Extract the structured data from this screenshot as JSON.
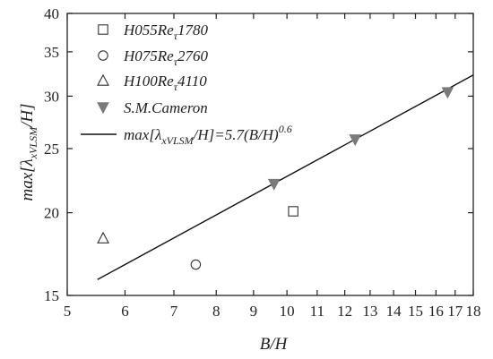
{
  "chart_data": {
    "type": "scatter",
    "x_scale": "log",
    "y_scale": "log",
    "xlim": [
      5,
      18
    ],
    "ylim": [
      15,
      40
    ],
    "x_ticks": [
      5,
      6,
      7,
      8,
      9,
      10,
      11,
      12,
      13,
      14,
      15,
      16,
      17,
      18
    ],
    "y_ticks": [
      15,
      20,
      25,
      30,
      35,
      40
    ],
    "x_ticks_labeled": [
      5,
      6,
      7,
      8,
      9,
      10,
      11,
      12,
      13,
      14,
      15,
      16,
      17,
      18
    ],
    "y_ticks_labeled": [
      15,
      20,
      25,
      30,
      35,
      40
    ],
    "xlabel": "B/H",
    "ylabel_parts": {
      "pre": "max[",
      "lambda": "λ",
      "sub": "xVLSM",
      "post": "/H]"
    },
    "legend_position": "top-left",
    "series": [
      {
        "key": "h055",
        "legend": {
          "pre": "H055Re",
          "sub": "τ",
          "post": "1780"
        },
        "marker": "square-open",
        "points": [
          {
            "x": 10.2,
            "y": 20.1
          }
        ]
      },
      {
        "key": "h075",
        "legend": {
          "pre": "H075Re",
          "sub": "τ",
          "post": "2760"
        },
        "marker": "circle-open",
        "points": [
          {
            "x": 7.5,
            "y": 16.7
          }
        ]
      },
      {
        "key": "h100",
        "legend": {
          "pre": "H100Re",
          "sub": "τ",
          "post": "4110"
        },
        "marker": "triangle-up-open",
        "points": [
          {
            "x": 5.6,
            "y": 18.3
          }
        ]
      },
      {
        "key": "cameron",
        "legend": {
          "pre": "S.M.Cameron",
          "sub": "",
          "post": ""
        },
        "marker": "triangle-down-filled",
        "points": [
          {
            "x": 9.6,
            "y": 22.1
          },
          {
            "x": 12.4,
            "y": 25.8
          },
          {
            "x": 16.6,
            "y": 30.4
          }
        ]
      }
    ],
    "fit_line": {
      "legend": {
        "pre": "max[",
        "lambda": "λ",
        "sub": "xVLSM",
        "mid": "/H]=5.7(B/H)",
        "sup": "0.6"
      },
      "coefficient": 5.7,
      "exponent": 0.6,
      "x_range": [
        5.5,
        18
      ]
    },
    "colors": {
      "axis": "#222222",
      "open_marker": "#333333",
      "filled_marker": "#7a7a7a",
      "line": "#111111"
    }
  }
}
